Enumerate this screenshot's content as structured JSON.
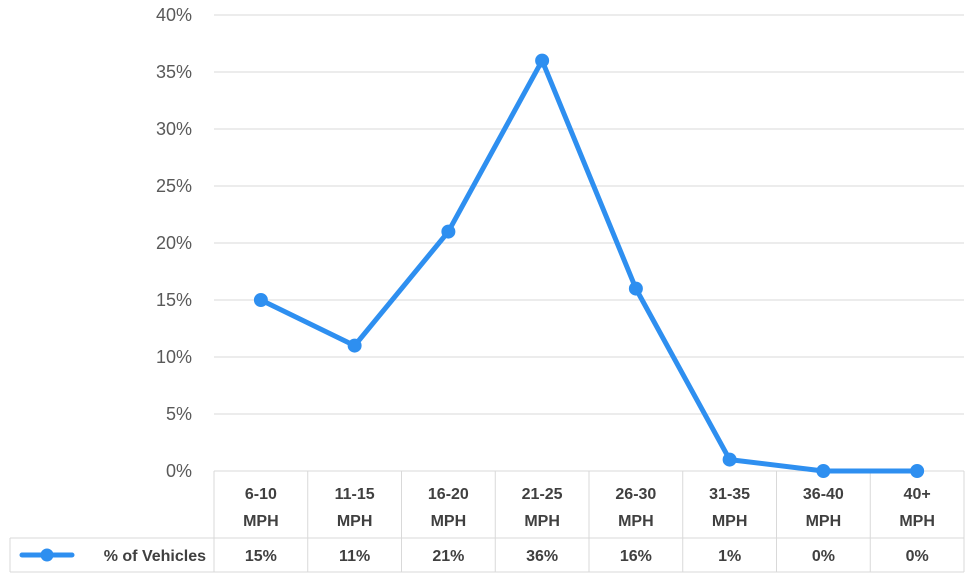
{
  "chart_data": {
    "type": "line",
    "title": "",
    "xlabel": "",
    "ylabel": "",
    "y_axis": {
      "min": 0,
      "max": 40,
      "step": 5,
      "tick_labels": [
        "0%",
        "5%",
        "10%",
        "15%",
        "20%",
        "25%",
        "30%",
        "35%",
        "40%"
      ]
    },
    "categories": [
      [
        "6-10",
        "MPH"
      ],
      [
        "11-15",
        "MPH"
      ],
      [
        "16-20",
        "MPH"
      ],
      [
        "21-25",
        "MPH"
      ],
      [
        "26-30",
        "MPH"
      ],
      [
        "31-35",
        "MPH"
      ],
      [
        "36-40",
        "MPH"
      ],
      [
        "40+",
        "MPH"
      ]
    ],
    "series": [
      {
        "name": "% of Vehicles",
        "values": [
          15,
          11,
          21,
          36,
          16,
          1,
          0,
          0
        ],
        "labels": [
          "15%",
          "11%",
          "21%",
          "36%",
          "16%",
          "1%",
          "0%",
          "0%"
        ],
        "color": "#2e8ff0"
      }
    ],
    "grid": true,
    "legend": "data-table-left",
    "gridline_color": "#d9d9d9",
    "table_border_color": "#d9d9d9"
  }
}
